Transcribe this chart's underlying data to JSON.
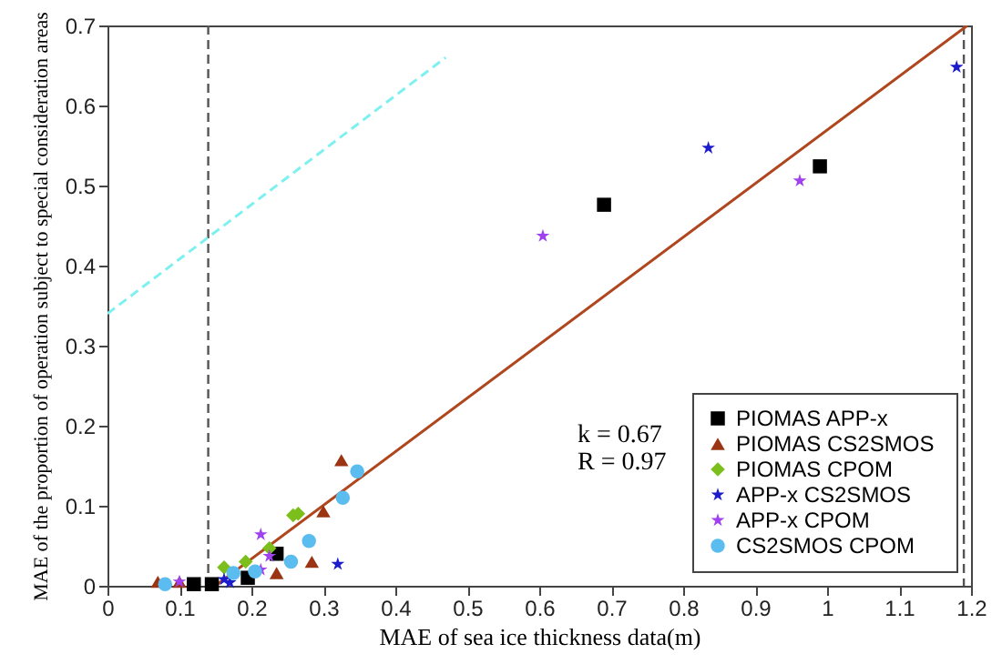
{
  "chart_data": {
    "type": "scatter",
    "xlabel": "MAE of sea ice thickness data(m)",
    "ylabel": "MAE of the proportion of operation subject to special consideration areas",
    "xlim": [
      0,
      1.2
    ],
    "ylim": [
      0,
      0.7
    ],
    "xticks": [
      0,
      0.1,
      0.2,
      0.3,
      0.4,
      0.5,
      0.6,
      0.7,
      0.8,
      0.9,
      1,
      1.1,
      1.2
    ],
    "yticks": [
      0,
      0.1,
      0.2,
      0.3,
      0.4,
      0.5,
      0.6,
      0.7
    ],
    "grid": false,
    "legend": "bottom right",
    "annotations": [
      "k = 0.67",
      "R = 0.97"
    ],
    "ref_lines": [
      {
        "axis": "x",
        "value": 0.14,
        "color": "#555555",
        "line_style": "dashed"
      },
      {
        "axis": "x",
        "value": 1.19,
        "color": "#555555",
        "line_style": "dashed"
      }
    ],
    "series": [
      {
        "name": "PIOMAS  APP-x",
        "color": "#000000",
        "marker": "square",
        "x": [
          0.12,
          0.145,
          0.195,
          0.235,
          0.69,
          0.99
        ],
        "values": [
          0.002,
          0.002,
          0.01,
          0.04,
          0.476,
          0.524
        ]
      },
      {
        "name": "PIOMAS  CS2SMOS",
        "color": "#9a3412",
        "marker": "triangle",
        "x": [
          0.07,
          0.1,
          0.235,
          0.284,
          0.3,
          0.325
        ],
        "values": [
          0.005,
          0.005,
          0.016,
          0.03,
          0.093,
          0.157
        ]
      },
      {
        "name": "PIOMAS  CPOM",
        "color": "#7cbf1c",
        "marker": "diamond",
        "x": [
          0.162,
          0.192,
          0.225,
          0.258,
          0.265
        ],
        "values": [
          0.023,
          0.03,
          0.047,
          0.088,
          0.09
        ]
      },
      {
        "name": "APP-x  CS2SMOS",
        "color": "#1c1ccc",
        "marker": "star",
        "x": [
          0.162,
          0.17,
          0.32,
          0.835,
          1.18
        ],
        "values": [
          0.008,
          0.004,
          0.027,
          0.547,
          0.648
        ]
      },
      {
        "name": "APP-x  CPOM",
        "color": "#a040f0",
        "marker": "star",
        "x": [
          0.1,
          0.213,
          0.213,
          0.225,
          0.605,
          0.962
        ],
        "values": [
          0.005,
          0.064,
          0.02,
          0.037,
          0.437,
          0.506
        ]
      },
      {
        "name": "CS2SMOS  CPOM",
        "color": "#5bbcef",
        "marker": "circle",
        "x": [
          0.08,
          0.175,
          0.205,
          0.255,
          0.28,
          0.327,
          0.347
        ],
        "values": [
          0.002,
          0.016,
          0.018,
          0.03,
          0.056,
          0.11,
          0.143
        ]
      },
      {
        "type": "line",
        "color": "#b0461e",
        "line_style": "solid",
        "x": [
          0.15,
          1.195
        ],
        "values": [
          0,
          0.7
        ]
      },
      {
        "type": "line",
        "color": "#7ff0f0",
        "line_style": "dashed",
        "x": [
          0,
          0.47
        ],
        "values": [
          0.34,
          0.66
        ]
      }
    ]
  }
}
